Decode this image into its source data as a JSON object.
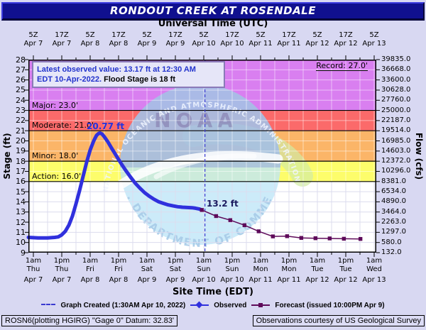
{
  "title": "RONDOUT CREEK AT ROSENDALE",
  "top_axis": {
    "label": "Universal Time (UTC)",
    "ticks": [
      {
        "hour": "5Z",
        "date": "Apr 7"
      },
      {
        "hour": "17Z",
        "date": "Apr 7"
      },
      {
        "hour": "5Z",
        "date": "Apr 8"
      },
      {
        "hour": "17Z",
        "date": "Apr 8"
      },
      {
        "hour": "5Z",
        "date": "Apr 9"
      },
      {
        "hour": "17Z",
        "date": "Apr 9"
      },
      {
        "hour": "5Z",
        "date": "Apr 10"
      },
      {
        "hour": "17Z",
        "date": "Apr 10"
      },
      {
        "hour": "5Z",
        "date": "Apr 11"
      },
      {
        "hour": "17Z",
        "date": "Apr 11"
      },
      {
        "hour": "5Z",
        "date": "Apr 12"
      },
      {
        "hour": "17Z",
        "date": "Apr 12"
      },
      {
        "hour": "5Z",
        "date": "Apr 13"
      }
    ]
  },
  "bottom_axis": {
    "label": "Site Time (EDT)",
    "ticks": [
      {
        "time": "1am",
        "day": "Thu",
        "date": "Apr 7"
      },
      {
        "time": "1pm",
        "day": "Thu",
        "date": "Apr 7"
      },
      {
        "time": "1am",
        "day": "Fri",
        "date": "Apr 8"
      },
      {
        "time": "1pm",
        "day": "Fri",
        "date": "Apr 8"
      },
      {
        "time": "1am",
        "day": "Sat",
        "date": "Apr 9"
      },
      {
        "time": "1pm",
        "day": "Sat",
        "date": "Apr 9"
      },
      {
        "time": "1am",
        "day": "Sun",
        "date": "Apr 10"
      },
      {
        "time": "1pm",
        "day": "Sun",
        "date": "Apr 10"
      },
      {
        "time": "1am",
        "day": "Mon",
        "date": "Apr 11"
      },
      {
        "time": "1pm",
        "day": "Mon",
        "date": "Apr 11"
      },
      {
        "time": "1am",
        "day": "Tue",
        "date": "Apr 12"
      },
      {
        "time": "1pm",
        "day": "Tue",
        "date": "Apr 12"
      },
      {
        "time": "1am",
        "day": "Wed",
        "date": "Apr 13"
      }
    ]
  },
  "left_axis": {
    "label": "Stage (ft)",
    "ticks": [
      28,
      27,
      26,
      25,
      24,
      23,
      22,
      21,
      20,
      19,
      18,
      17,
      16,
      15,
      14,
      13,
      12,
      11,
      10,
      9
    ]
  },
  "right_axis": {
    "label": "Flow (cfs)",
    "ticks": [
      "39835.0",
      "36668.0",
      "33600.0",
      "30628.0",
      "27760.0",
      "25000.0",
      "22187.0",
      "19514.0",
      "16985.0",
      "14603.0",
      "12372.0",
      "10296.0",
      "8381.0",
      "6534.0",
      "4890.0",
      "3464.0",
      "2263.0",
      "1297.0",
      "580.0",
      "132.0"
    ]
  },
  "annotation_box": {
    "line1": "Latest observed value: 13.17 ft at 12:30 AM",
    "line2_blue": "EDT 10-Apr-2022.",
    "line2_black": "Flood Stage is 18 ft"
  },
  "flood_labels": {
    "record": "Record: 27.0'",
    "major": "Major: 23.0'",
    "moderate": "Moderate: 21.0'",
    "minor": "Minor: 18.0'",
    "action": "Action: 16.0'"
  },
  "peak_label": "20.77 ft",
  "forecast_point_label": "13.2 ft",
  "legend": {
    "created": "Graph Created (1:30AM Apr 10, 2022)",
    "observed": "Observed",
    "forecast": "Forecast (issued 10:00PM Apr 9)"
  },
  "footer": {
    "left": "ROSN6(plotting HGIRG) \"Gage 0\" Datum: 32.83'",
    "right": "Observations courtesy of US Geological Survey"
  },
  "watermark": {
    "arc_top": "NATIONAL OCEANIC AND ATMOSPHERIC ADMINISTRATION",
    "center": "NOAA",
    "arc_bottom": "U.S. DEPARTMENT OF COMMERCE"
  },
  "colors": {
    "page_bg": "#d8d8f2",
    "titlebar_bg": "#10108f",
    "band_major": "#d97ff0",
    "band_moderate": "#fb6a6a",
    "band_minor": "#fbb568",
    "band_action": "#fdfd6b",
    "plot_bg": "#ffffff",
    "grid_on_bands": "rgba(255,255,255,0.5)",
    "grid_on_white": "#dcdcee",
    "observed": "#3030dd",
    "forecast": "#5e0a5a",
    "created_line": "#3a3ad0",
    "flood_line": "#000000",
    "annotation_blue": "#2233cc",
    "watermark_circle": "#bfe6f7",
    "watermark_top_tint": "#93a7d8",
    "watermark_green": "#d2eba2",
    "watermark_text": "#a8cbe8"
  },
  "chart_data": {
    "type": "line",
    "title": "RONDOUT CREEK AT ROSENDALE",
    "xlabel_top": "Universal Time (UTC)",
    "xlabel_bottom": "Site Time (EDT)",
    "ylabel_left": "Stage (ft)",
    "ylabel_right": "Flow (cfs)",
    "stage_ylim": [
      9,
      28
    ],
    "x_unit": "hours since Apr 7 1:00 AM EDT",
    "x_range_hours": [
      -2.1,
      144.9
    ],
    "hours_per_labeled_tick": 12,
    "flood_levels": {
      "action": 16.0,
      "minor": 18.0,
      "moderate": 21.0,
      "major": 23.0,
      "record": 27.0
    },
    "flood_stage_ft": 18,
    "latest_observed": {
      "stage_ft": 13.17,
      "time": "12:30 AM EDT 10-Apr-2022"
    },
    "peak_observed_ft": 20.77,
    "first_forecast_ft": 13.2,
    "graph_created_hour": 72.5,
    "series": [
      {
        "name": "Observed",
        "points": [
          [
            -2.1,
            10.5
          ],
          [
            2,
            10.45
          ],
          [
            6,
            10.45
          ],
          [
            9,
            10.5
          ],
          [
            10.5,
            10.55
          ],
          [
            12,
            10.75
          ],
          [
            13.5,
            11.1
          ],
          [
            15,
            11.7
          ],
          [
            16.5,
            12.6
          ],
          [
            18,
            13.8
          ],
          [
            19.5,
            15.1
          ],
          [
            21,
            16.5
          ],
          [
            22.5,
            17.9
          ],
          [
            24,
            19.1
          ],
          [
            25.5,
            20.0
          ],
          [
            26.7,
            20.55
          ],
          [
            27.6,
            20.74
          ],
          [
            28.2,
            20.77
          ],
          [
            29,
            20.68
          ],
          [
            30,
            20.4
          ],
          [
            31.5,
            19.9
          ],
          [
            33,
            19.3
          ],
          [
            35,
            18.55
          ],
          [
            37,
            17.8
          ],
          [
            39,
            17.1
          ],
          [
            41,
            16.45
          ],
          [
            43,
            15.85
          ],
          [
            45,
            15.35
          ],
          [
            47,
            14.9
          ],
          [
            49,
            14.55
          ],
          [
            51,
            14.25
          ],
          [
            53,
            14.0
          ],
          [
            55,
            13.85
          ],
          [
            57,
            13.7
          ],
          [
            59,
            13.6
          ],
          [
            61,
            13.52
          ],
          [
            63,
            13.47
          ],
          [
            65,
            13.44
          ],
          [
            67,
            13.42
          ],
          [
            68.5,
            13.37
          ],
          [
            70,
            13.3
          ],
          [
            71.2,
            13.2
          ]
        ]
      },
      {
        "name": "Forecast",
        "points": [
          [
            71.2,
            13.2
          ],
          [
            77.2,
            12.6
          ],
          [
            83.2,
            12.2
          ],
          [
            89.2,
            11.7
          ],
          [
            95.2,
            11.1
          ],
          [
            101.2,
            10.6
          ],
          [
            107.2,
            10.62
          ],
          [
            113.2,
            10.45
          ],
          [
            119.2,
            10.42
          ],
          [
            125.2,
            10.4
          ],
          [
            131.2,
            10.37
          ],
          [
            138.2,
            10.35
          ]
        ]
      }
    ]
  }
}
